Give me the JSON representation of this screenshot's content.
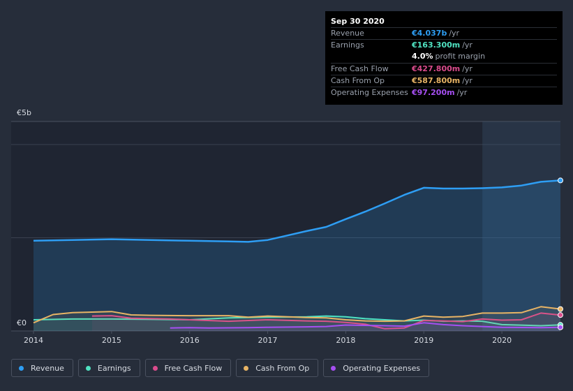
{
  "chart_data": {
    "type": "line",
    "y_axis_labels": [
      "€5b",
      "€0"
    ],
    "ylim": [
      0,
      5.0
    ],
    "xlim": [
      2014,
      2020.75
    ],
    "x_ticks": [
      "2014",
      "2015",
      "2016",
      "2017",
      "2018",
      "2019",
      "2020"
    ],
    "grid": true,
    "legend_position": "bottom-left",
    "series": [
      {
        "name": "Revenue",
        "color": "#2e9ef4",
        "fill": true,
        "points": [
          [
            2014.0,
            2.42
          ],
          [
            2014.5,
            2.44
          ],
          [
            2015.0,
            2.46
          ],
          [
            2015.5,
            2.44
          ],
          [
            2016.0,
            2.42
          ],
          [
            2016.5,
            2.4
          ],
          [
            2016.75,
            2.39
          ],
          [
            2017.0,
            2.44
          ],
          [
            2017.25,
            2.56
          ],
          [
            2017.5,
            2.68
          ],
          [
            2017.75,
            2.79
          ],
          [
            2018.0,
            3.0
          ],
          [
            2018.25,
            3.2
          ],
          [
            2018.5,
            3.42
          ],
          [
            2018.75,
            3.65
          ],
          [
            2019.0,
            3.84
          ],
          [
            2019.25,
            3.82
          ],
          [
            2019.5,
            3.82
          ],
          [
            2019.75,
            3.83
          ],
          [
            2020.0,
            3.85
          ],
          [
            2020.25,
            3.9
          ],
          [
            2020.5,
            4.0
          ],
          [
            2020.75,
            4.037
          ]
        ]
      },
      {
        "name": "Earnings",
        "color": "#50e3c2",
        "fill": false,
        "points": [
          [
            2014.0,
            0.3
          ],
          [
            2014.5,
            0.32
          ],
          [
            2015.0,
            0.32
          ],
          [
            2015.5,
            0.31
          ],
          [
            2016.0,
            0.3
          ],
          [
            2016.5,
            0.35
          ],
          [
            2017.0,
            0.37
          ],
          [
            2017.5,
            0.38
          ],
          [
            2017.75,
            0.4
          ],
          [
            2018.0,
            0.38
          ],
          [
            2018.25,
            0.33
          ],
          [
            2018.5,
            0.3
          ],
          [
            2018.75,
            0.27
          ],
          [
            2019.0,
            0.29
          ],
          [
            2019.25,
            0.26
          ],
          [
            2019.5,
            0.27
          ],
          [
            2019.75,
            0.26
          ],
          [
            2020.0,
            0.17
          ],
          [
            2020.5,
            0.14
          ],
          [
            2020.75,
            0.1633
          ]
        ]
      },
      {
        "name": "Free Cash Flow",
        "color": "#d94b8c",
        "fill": false,
        "points": [
          [
            2014.75,
            0.4
          ],
          [
            2015.0,
            0.41
          ],
          [
            2015.25,
            0.34
          ],
          [
            2015.75,
            0.32
          ],
          [
            2016.0,
            0.3
          ],
          [
            2016.5,
            0.26
          ],
          [
            2017.0,
            0.3
          ],
          [
            2017.5,
            0.27
          ],
          [
            2017.75,
            0.26
          ],
          [
            2018.0,
            0.23
          ],
          [
            2018.25,
            0.18
          ],
          [
            2018.5,
            0.06
          ],
          [
            2018.75,
            0.08
          ],
          [
            2019.0,
            0.28
          ],
          [
            2019.25,
            0.27
          ],
          [
            2019.5,
            0.25
          ],
          [
            2019.75,
            0.32
          ],
          [
            2020.0,
            0.29
          ],
          [
            2020.25,
            0.3
          ],
          [
            2020.5,
            0.48
          ],
          [
            2020.75,
            0.4278
          ]
        ]
      },
      {
        "name": "Cash From Op",
        "color": "#e8b465",
        "fill": false,
        "points": [
          [
            2014.0,
            0.22
          ],
          [
            2014.25,
            0.44
          ],
          [
            2014.5,
            0.49
          ],
          [
            2015.0,
            0.52
          ],
          [
            2015.25,
            0.43
          ],
          [
            2015.5,
            0.42
          ],
          [
            2016.0,
            0.41
          ],
          [
            2016.5,
            0.41
          ],
          [
            2016.75,
            0.37
          ],
          [
            2017.0,
            0.4
          ],
          [
            2017.5,
            0.36
          ],
          [
            2017.75,
            0.35
          ],
          [
            2018.0,
            0.3
          ],
          [
            2018.25,
            0.27
          ],
          [
            2018.5,
            0.26
          ],
          [
            2018.75,
            0.27
          ],
          [
            2019.0,
            0.4
          ],
          [
            2019.25,
            0.37
          ],
          [
            2019.5,
            0.39
          ],
          [
            2019.75,
            0.48
          ],
          [
            2020.0,
            0.48
          ],
          [
            2020.25,
            0.49
          ],
          [
            2020.5,
            0.65
          ],
          [
            2020.75,
            0.5878
          ]
        ]
      },
      {
        "name": "Operating Expenses",
        "color": "#a64ff2",
        "fill": false,
        "points": [
          [
            2015.75,
            0.08
          ],
          [
            2016.0,
            0.09
          ],
          [
            2016.25,
            0.08
          ],
          [
            2016.75,
            0.09
          ],
          [
            2017.0,
            0.1
          ],
          [
            2017.5,
            0.11
          ],
          [
            2017.75,
            0.12
          ],
          [
            2018.0,
            0.16
          ],
          [
            2018.25,
            0.15
          ],
          [
            2018.5,
            0.14
          ],
          [
            2018.75,
            0.13
          ],
          [
            2019.0,
            0.22
          ],
          [
            2019.25,
            0.17
          ],
          [
            2019.5,
            0.14
          ],
          [
            2019.75,
            0.12
          ],
          [
            2020.0,
            0.1
          ],
          [
            2020.5,
            0.09
          ],
          [
            2020.75,
            0.0972
          ]
        ]
      }
    ],
    "tooltip": {
      "date": "Sep 30 2020",
      "rows": [
        {
          "label": "Revenue",
          "value": "€4.037b",
          "unit": "/yr",
          "color": "#2e9ef4"
        },
        {
          "label": "Earnings",
          "value": "€163.300m",
          "unit": "/yr",
          "color": "#50e3c2"
        },
        {
          "label": "",
          "value": "4.0%",
          "unit": "profit margin",
          "color": "#ffffff"
        },
        {
          "label": "Free Cash Flow",
          "value": "€427.800m",
          "unit": "/yr",
          "color": "#d94b8c"
        },
        {
          "label": "Cash From Op",
          "value": "€587.800m",
          "unit": "/yr",
          "color": "#e8b465"
        },
        {
          "label": "Operating Expenses",
          "value": "€97.200m",
          "unit": "/yr",
          "color": "#a64ff2"
        }
      ]
    }
  }
}
